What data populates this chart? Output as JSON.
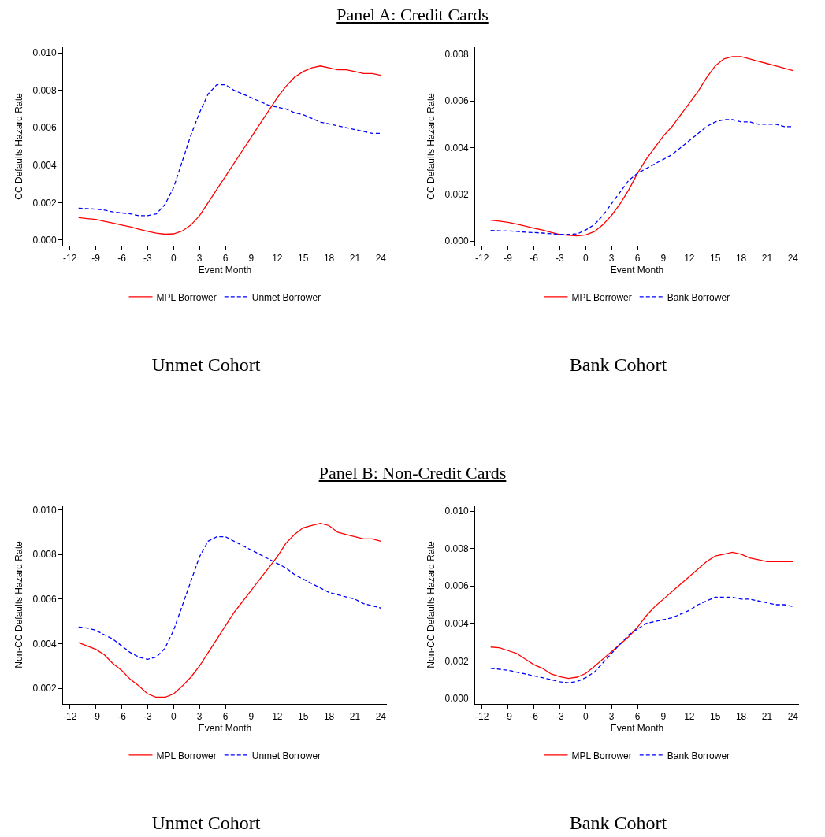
{
  "chart_data": [
    {
      "type": "line",
      "title": "Panel A: Credit Cards",
      "xlabel": "Event Month",
      "ylabel": "CC Defaults Hazard Rate",
      "annotations": [
        "Unmet Cohort"
      ],
      "legend": "bottom",
      "grid": false,
      "marker": "none",
      "x": [
        -11,
        -10,
        -9,
        -8,
        -7,
        -6,
        -5,
        -4,
        -3,
        -2,
        -1,
        0,
        1,
        2,
        3,
        4,
        5,
        6,
        7,
        8,
        9,
        10,
        11,
        12,
        13,
        14,
        15,
        16,
        17,
        18,
        19,
        20,
        21,
        22,
        23,
        24
      ],
      "xlim": [
        -12.8,
        24.7
      ],
      "xticks": [
        -12,
        -9,
        -6,
        -3,
        0,
        3,
        6,
        9,
        12,
        15,
        18,
        21,
        24
      ],
      "ylim": [
        -0.0003,
        0.0103
      ],
      "yticks": [
        {
          "value": 0,
          "label": "0.000"
        },
        {
          "value": 0.002,
          "label": "0.002"
        },
        {
          "value": 0.004,
          "label": "0.004"
        },
        {
          "value": 0.006,
          "label": "0.006"
        },
        {
          "value": 0.008,
          "label": "0.008"
        },
        {
          "value": 0.01,
          "label": "0.010"
        }
      ],
      "series": [
        {
          "name": "MPL Borrower",
          "color": "#ff0000",
          "line_style": "solid",
          "values": [
            0.0012,
            0.00115,
            0.0011,
            0.001,
            0.0009,
            0.0008,
            0.0007,
            0.00058,
            0.00046,
            0.00037,
            0.00031,
            0.00033,
            0.00048,
            0.0008,
            0.0013,
            0.002,
            0.0027,
            0.0034,
            0.0041,
            0.0048,
            0.0055,
            0.0062,
            0.0069,
            0.0076,
            0.0082,
            0.0087,
            0.009,
            0.0092,
            0.0093,
            0.0092,
            0.0091,
            0.0091,
            0.009,
            0.0089,
            0.0089,
            0.0088
          ]
        },
        {
          "name": "Unmet Borrower",
          "color": "#0000ff",
          "line_style": "dashed",
          "values": [
            0.0017,
            0.00168,
            0.00165,
            0.0016,
            0.0015,
            0.00145,
            0.0014,
            0.0013,
            0.0013,
            0.0014,
            0.0019,
            0.0028,
            0.0042,
            0.0056,
            0.0068,
            0.0078,
            0.0083,
            0.0083,
            0.008,
            0.0078,
            0.0076,
            0.0074,
            0.0072,
            0.0071,
            0.007,
            0.0068,
            0.0067,
            0.0065,
            0.0063,
            0.0062,
            0.0061,
            0.006,
            0.0059,
            0.0058,
            0.0057,
            0.0057
          ]
        }
      ]
    },
    {
      "type": "line",
      "xlabel": "Event Month",
      "ylabel": "CC Defaults Hazard Rate",
      "annotations": [
        "Bank Cohort"
      ],
      "legend": "bottom",
      "grid": false,
      "marker": "none",
      "x": [
        -11,
        -10,
        -9,
        -8,
        -7,
        -6,
        -5,
        -4,
        -3,
        -2,
        -1,
        0,
        1,
        2,
        3,
        4,
        5,
        6,
        7,
        8,
        9,
        10,
        11,
        12,
        13,
        14,
        15,
        16,
        17,
        18,
        19,
        20,
        21,
        22,
        23,
        24
      ],
      "xlim": [
        -12.8,
        24.7
      ],
      "xticks": [
        -12,
        -9,
        -6,
        -3,
        0,
        3,
        6,
        9,
        12,
        15,
        18,
        21,
        24
      ],
      "ylim": [
        -0.0002,
        0.0083
      ],
      "yticks": [
        {
          "value": 0,
          "label": "0.000"
        },
        {
          "value": 0.002,
          "label": "0.002"
        },
        {
          "value": 0.004,
          "label": "0.004"
        },
        {
          "value": 0.006,
          "label": "0.006"
        },
        {
          "value": 0.008,
          "label": "0.008"
        }
      ],
      "series": [
        {
          "name": "MPL Borrower",
          "color": "#ff0000",
          "line_style": "solid",
          "values": [
            0.00089,
            0.00085,
            0.0008,
            0.00072,
            0.00064,
            0.00055,
            0.00047,
            0.00037,
            0.00028,
            0.00024,
            0.00022,
            0.00026,
            0.0004,
            0.0007,
            0.0011,
            0.0016,
            0.0022,
            0.0029,
            0.0035,
            0.004,
            0.0045,
            0.0049,
            0.0054,
            0.0059,
            0.0064,
            0.007,
            0.0075,
            0.0078,
            0.0079,
            0.0079,
            0.0078,
            0.0077,
            0.0076,
            0.0075,
            0.0074,
            0.0073
          ]
        },
        {
          "name": "Bank Borrower",
          "color": "#0000ff",
          "line_style": "dashed",
          "values": [
            0.00045,
            0.00044,
            0.00043,
            0.00041,
            0.00038,
            0.00036,
            0.00034,
            0.00031,
            0.00028,
            0.00028,
            0.0003,
            0.00047,
            0.0007,
            0.0011,
            0.0016,
            0.0021,
            0.0026,
            0.0029,
            0.0031,
            0.0033,
            0.0035,
            0.0037,
            0.004,
            0.0043,
            0.0046,
            0.0049,
            0.0051,
            0.0052,
            0.0052,
            0.0051,
            0.0051,
            0.005,
            0.005,
            0.005,
            0.0049,
            0.0049
          ]
        }
      ]
    },
    {
      "type": "line",
      "title": "Panel B: Non-Credit Cards",
      "xlabel": "Event Month",
      "ylabel": "Non-CC Defaults Hazard Rate",
      "annotations": [
        "Unmet Cohort"
      ],
      "legend": "bottom",
      "grid": false,
      "marker": "none",
      "x": [
        -11,
        -10,
        -9,
        -8,
        -7,
        -6,
        -5,
        -4,
        -3,
        -2,
        -1,
        0,
        1,
        2,
        3,
        4,
        5,
        6,
        7,
        8,
        9,
        10,
        11,
        12,
        13,
        14,
        15,
        16,
        17,
        18,
        19,
        20,
        21,
        22,
        23,
        24
      ],
      "xlim": [
        -12.8,
        24.7
      ],
      "xticks": [
        -12,
        -9,
        -6,
        -3,
        0,
        3,
        6,
        9,
        12,
        15,
        18,
        21,
        24
      ],
      "ylim": [
        0.0013,
        0.0102
      ],
      "yticks": [
        {
          "value": 0.002,
          "label": "0.002"
        },
        {
          "value": 0.004,
          "label": "0.004"
        },
        {
          "value": 0.006,
          "label": "0.006"
        },
        {
          "value": 0.008,
          "label": "0.008"
        },
        {
          "value": 0.01,
          "label": "0.010"
        }
      ],
      "series": [
        {
          "name": "MPL Borrower",
          "color": "#ff0000",
          "line_style": "solid",
          "values": [
            0.00405,
            0.0039,
            0.00375,
            0.0035,
            0.0031,
            0.0028,
            0.0024,
            0.0021,
            0.00175,
            0.0016,
            0.0016,
            0.00175,
            0.0021,
            0.0025,
            0.003,
            0.0036,
            0.0042,
            0.0048,
            0.0054,
            0.0059,
            0.0064,
            0.0069,
            0.0074,
            0.0079,
            0.0085,
            0.0089,
            0.0092,
            0.0093,
            0.0094,
            0.0093,
            0.009,
            0.0089,
            0.0088,
            0.0087,
            0.0087,
            0.0086
          ]
        },
        {
          "name": "Unmet Borrower",
          "color": "#0000ff",
          "line_style": "dashed",
          "values": [
            0.00475,
            0.0047,
            0.0046,
            0.0044,
            0.0042,
            0.0039,
            0.0036,
            0.0034,
            0.0033,
            0.0034,
            0.0038,
            0.0046,
            0.0057,
            0.0068,
            0.0079,
            0.0086,
            0.0088,
            0.0088,
            0.0086,
            0.0084,
            0.0082,
            0.008,
            0.0078,
            0.0076,
            0.0074,
            0.0071,
            0.0069,
            0.0067,
            0.0065,
            0.0063,
            0.0062,
            0.0061,
            0.006,
            0.0058,
            0.0057,
            0.0056
          ]
        }
      ]
    },
    {
      "type": "line",
      "xlabel": "Event Month",
      "ylabel": "Non-CC Defaults Hazard Rate",
      "annotations": [
        "Bank Cohort"
      ],
      "legend": "bottom",
      "grid": false,
      "marker": "none",
      "x": [
        -11,
        -10,
        -9,
        -8,
        -7,
        -6,
        -5,
        -4,
        -3,
        -2,
        -1,
        0,
        1,
        2,
        3,
        4,
        5,
        6,
        7,
        8,
        9,
        10,
        11,
        12,
        13,
        14,
        15,
        16,
        17,
        18,
        19,
        20,
        21,
        22,
        23,
        24
      ],
      "xlim": [
        -12.8,
        24.7
      ],
      "xticks": [
        -12,
        -9,
        -6,
        -3,
        0,
        3,
        6,
        9,
        12,
        15,
        18,
        21,
        24
      ],
      "ylim": [
        -0.0003,
        0.0103
      ],
      "yticks": [
        {
          "value": 0,
          "label": "0.000"
        },
        {
          "value": 0.002,
          "label": "0.002"
        },
        {
          "value": 0.004,
          "label": "0.004"
        },
        {
          "value": 0.006,
          "label": "0.006"
        },
        {
          "value": 0.008,
          "label": "0.008"
        },
        {
          "value": 0.01,
          "label": "0.010"
        }
      ],
      "series": [
        {
          "name": "MPL Borrower",
          "color": "#ff0000",
          "line_style": "solid",
          "values": [
            0.00274,
            0.0027,
            0.00255,
            0.0024,
            0.0021,
            0.0018,
            0.0016,
            0.0013,
            0.00116,
            0.00106,
            0.00113,
            0.00133,
            0.0017,
            0.0021,
            0.0025,
            0.0029,
            0.0033,
            0.0038,
            0.0044,
            0.0049,
            0.0053,
            0.0057,
            0.0061,
            0.0065,
            0.0069,
            0.0073,
            0.0076,
            0.0077,
            0.0078,
            0.0077,
            0.0075,
            0.0074,
            0.0073,
            0.0073,
            0.0073,
            0.0073
          ]
        },
        {
          "name": "Bank Borrower",
          "color": "#0000ff",
          "line_style": "dashed",
          "values": [
            0.0016,
            0.00155,
            0.0015,
            0.0014,
            0.0013,
            0.0012,
            0.0011,
            0.001,
            0.00088,
            0.00083,
            0.0009,
            0.0011,
            0.0014,
            0.0019,
            0.0024,
            0.0029,
            0.0034,
            0.0037,
            0.004,
            0.0041,
            0.0042,
            0.0043,
            0.0045,
            0.0047,
            0.005,
            0.0052,
            0.0054,
            0.0054,
            0.0054,
            0.0053,
            0.0053,
            0.0052,
            0.0051,
            0.005,
            0.005,
            0.0049
          ]
        }
      ]
    }
  ]
}
